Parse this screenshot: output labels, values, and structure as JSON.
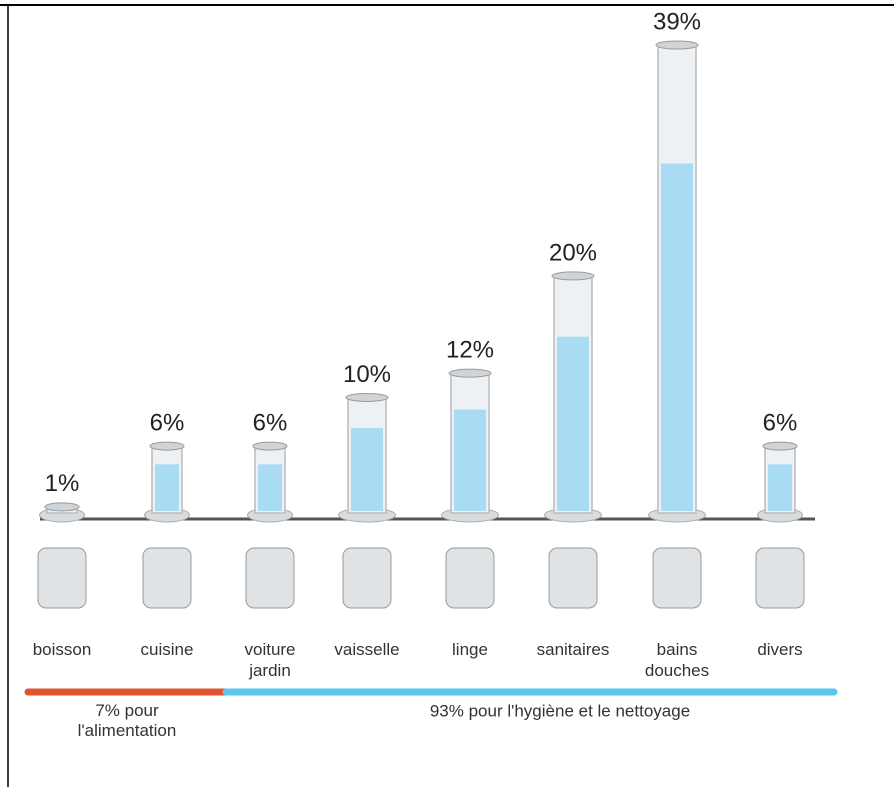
{
  "chart_data": {
    "type": "cylinder",
    "categories": [
      "boisson",
      "cuisine",
      "voiture jardin",
      "vaisselle",
      "linge",
      "sanitaires",
      "bains douches",
      "divers"
    ],
    "values": [
      1,
      6,
      6,
      10,
      12,
      20,
      39,
      6
    ],
    "value_labels": [
      "1%",
      "6%",
      "6%",
      "10%",
      "12%",
      "20%",
      "39%",
      "6%"
    ],
    "color": "#a9dcf2",
    "groups": [
      {
        "label": "7% pour l'alimentation",
        "color": "#e0532c"
      },
      {
        "label": "93% pour l'hygiène et le nettoyage",
        "color": "#5cc6ee"
      }
    ]
  }
}
